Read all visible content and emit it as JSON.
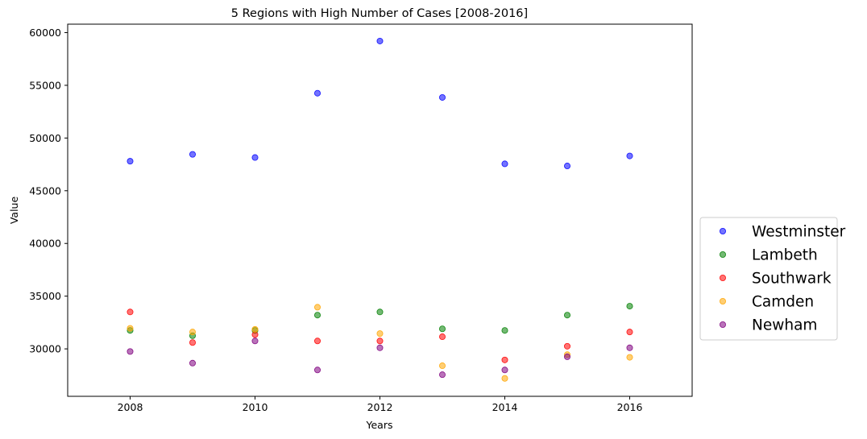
{
  "chart_data": {
    "type": "scatter",
    "title": "5 Regions with High Number of Cases [2008-2016]",
    "xlabel": "Years",
    "ylabel": "Value",
    "xlim": [
      2007,
      2017
    ],
    "ylim": [
      25500,
      60800
    ],
    "xticks": [
      2008,
      2010,
      2012,
      2014,
      2016
    ],
    "yticks": [
      30000,
      35000,
      40000,
      45000,
      50000,
      55000,
      60000
    ],
    "legend_position": "outside-right",
    "x": [
      2008,
      2009,
      2010,
      2011,
      2012,
      2013,
      2014,
      2015,
      2016
    ],
    "series": [
      {
        "name": "Westminster",
        "color": "#0000ff",
        "values": [
          47800,
          48450,
          48150,
          54250,
          59200,
          53850,
          47550,
          47350,
          48300
        ]
      },
      {
        "name": "Lambeth",
        "color": "#008000",
        "values": [
          31750,
          31250,
          31750,
          33200,
          33500,
          31900,
          31750,
          33200,
          34050
        ]
      },
      {
        "name": "Southwark",
        "color": "#ff0000",
        "values": [
          33500,
          30600,
          31350,
          30750,
          30750,
          31150,
          28950,
          30250,
          31600
        ]
      },
      {
        "name": "Camden",
        "color": "#ffa500",
        "values": [
          31950,
          31600,
          31850,
          33950,
          31450,
          28400,
          27200,
          29450,
          29200
        ]
      },
      {
        "name": "Newham",
        "color": "#800080",
        "values": [
          29750,
          28650,
          30750,
          28000,
          30100,
          27550,
          28000,
          29250,
          30100
        ]
      }
    ]
  }
}
